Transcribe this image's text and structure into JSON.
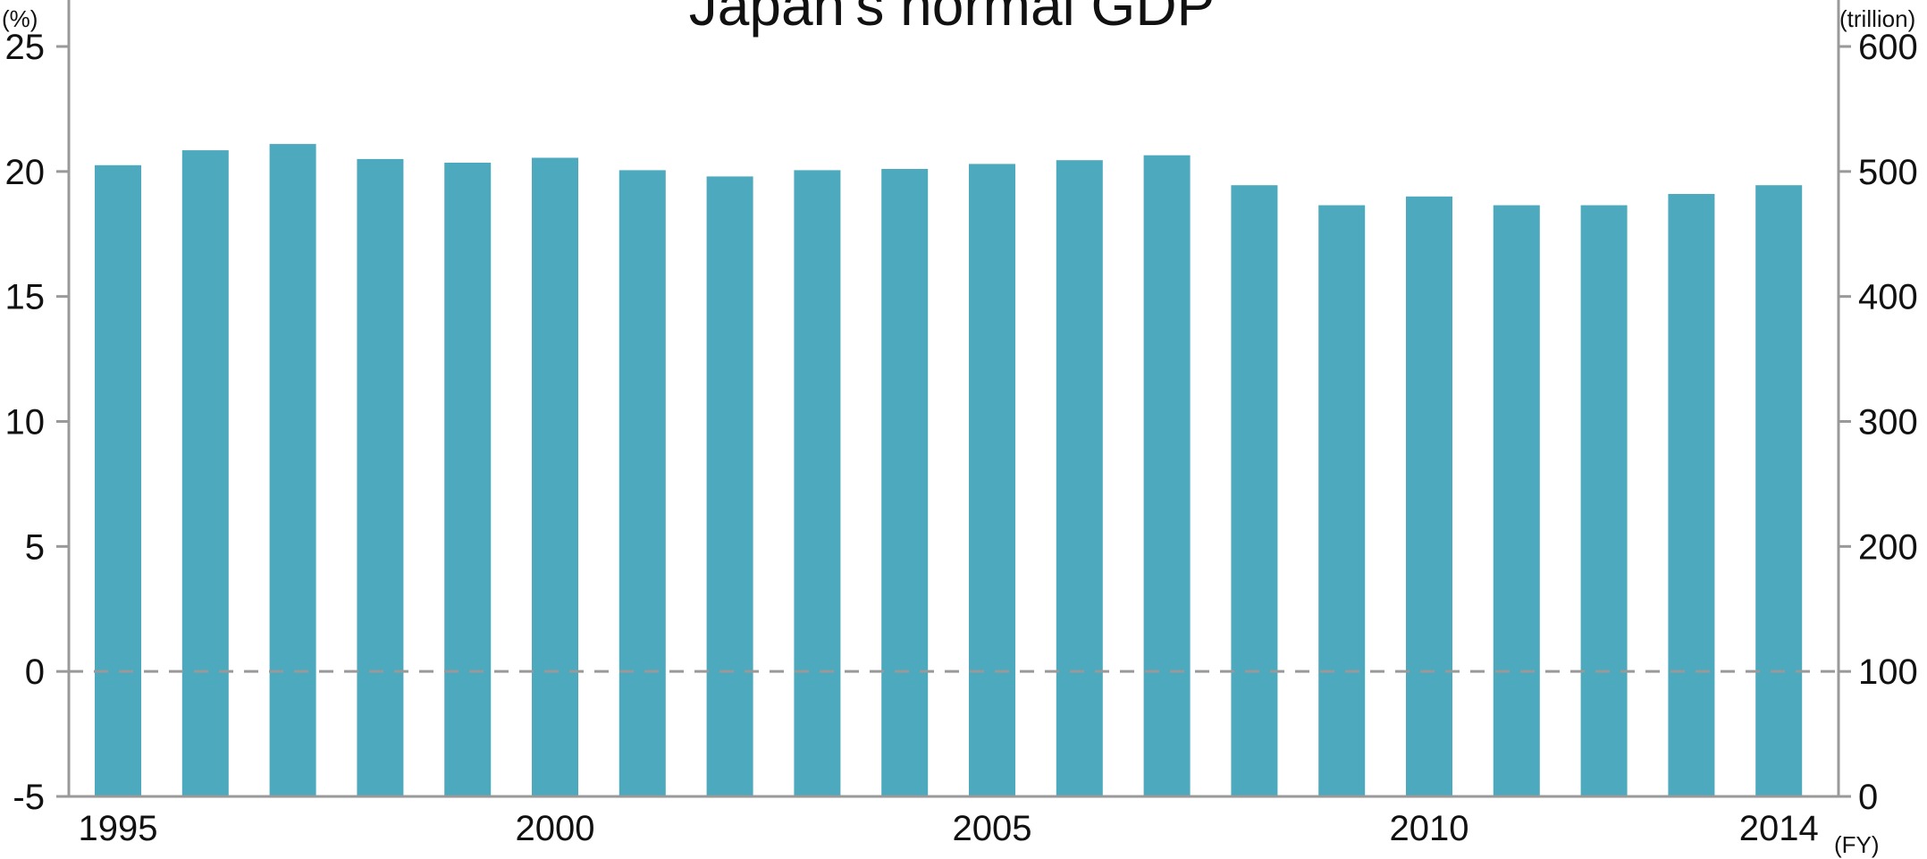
{
  "chart_data": {
    "type": "bar",
    "title": "Japan's normal GDP",
    "left_unit": "(%)",
    "right_unit": "(trillion)",
    "x_unit": "(FY)",
    "x": [
      1995,
      1996,
      1997,
      1998,
      1999,
      2000,
      2001,
      2002,
      2003,
      2004,
      2005,
      2006,
      2007,
      2008,
      2009,
      2010,
      2011,
      2012,
      2013,
      2014
    ],
    "x_tick_labels": [
      "1995",
      "2000",
      "2005",
      "2010",
      "2014"
    ],
    "y_left_ticks": [
      "25",
      "20",
      "15",
      "10",
      "5",
      "0",
      "-5"
    ],
    "y_right_ticks": [
      "600",
      "500",
      "400",
      "300",
      "200",
      "100",
      "0"
    ],
    "series": [
      {
        "values": [
          505,
          517,
          522,
          510,
          507,
          511,
          501,
          496,
          501,
          502,
          506,
          509,
          513,
          489,
          473,
          480,
          473,
          473,
          482,
          489
        ],
        "axis": "right"
      }
    ],
    "y_left_lim": [
      -5,
      25
    ],
    "y_right_lim": [
      0,
      600
    ],
    "zero_line_left": 0,
    "bar_color": "#4da9bd",
    "axis_color": "#999999",
    "grid": false
  }
}
